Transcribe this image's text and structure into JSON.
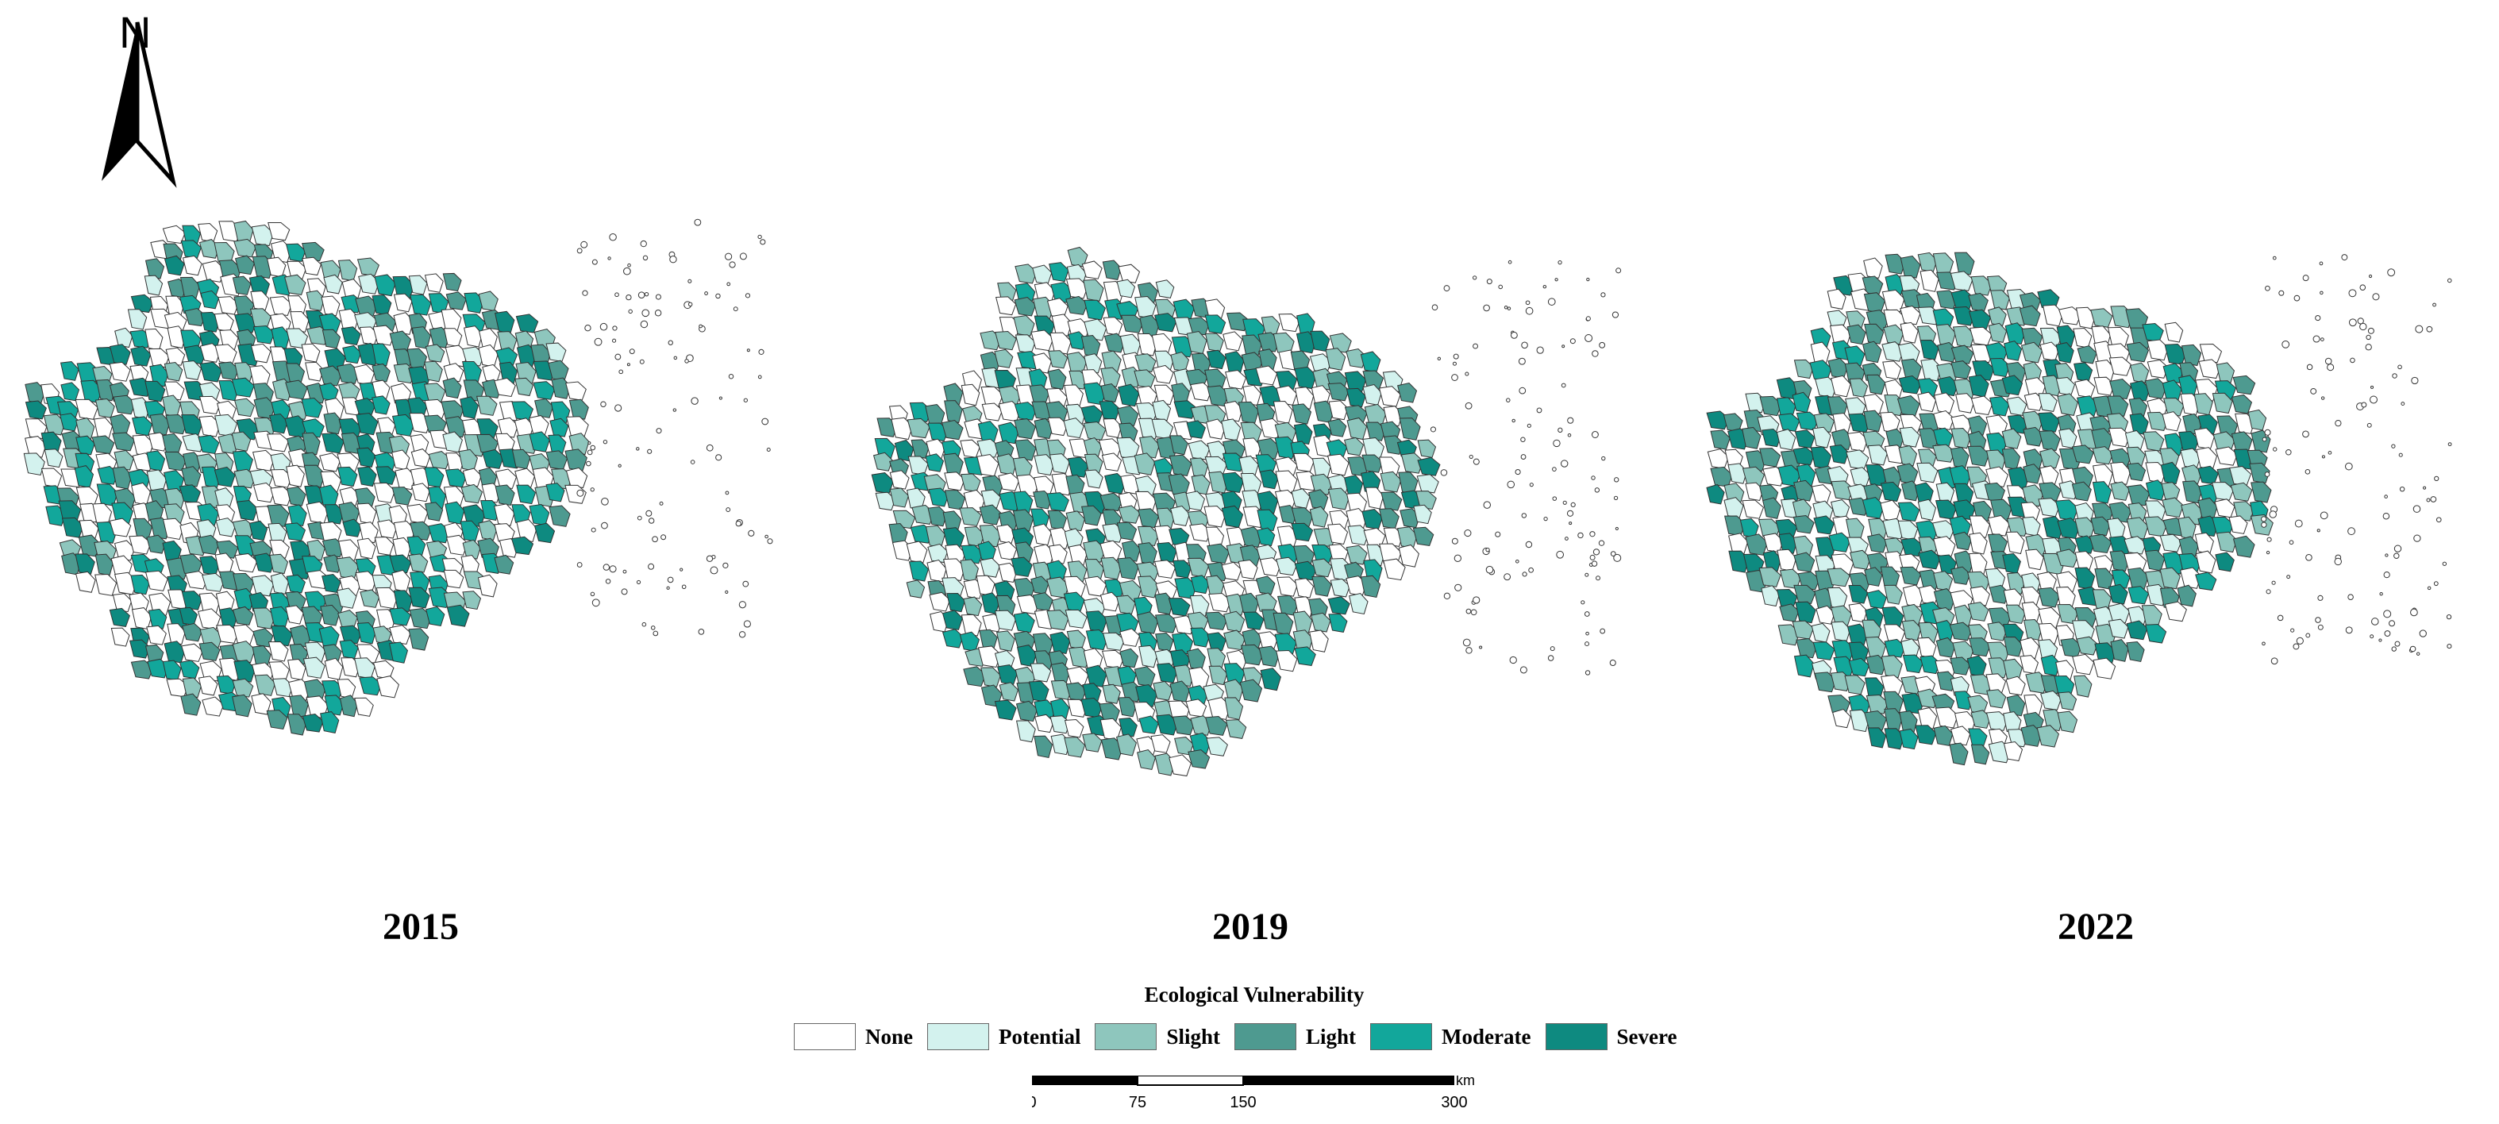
{
  "north_arrow": {
    "label": "N"
  },
  "maps": [
    {
      "year": "2015"
    },
    {
      "year": "2019"
    },
    {
      "year": "2022"
    }
  ],
  "legend": {
    "title": "Ecological Vulnerability",
    "classes": [
      {
        "label": "None",
        "color": "#ffffff"
      },
      {
        "label": "Potential",
        "color": "#d3f2ee"
      },
      {
        "label": "Slight",
        "color": "#8ec6bd"
      },
      {
        "label": "Light",
        "color": "#4e9a90"
      },
      {
        "label": "Moderate",
        "color": "#12a79b"
      },
      {
        "label": "Severe",
        "color": "#0e8a80"
      }
    ]
  },
  "scale_bar": {
    "unit": "km",
    "ticks": [
      "0",
      "75",
      "150",
      "300"
    ]
  }
}
